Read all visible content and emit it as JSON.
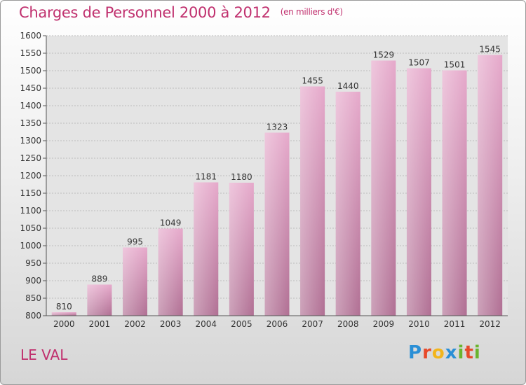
{
  "header": {
    "title": "Charges de Personnel 2000 à 2012",
    "subtitle": "(en milliers d'€)"
  },
  "footer": {
    "place": "LE VAL",
    "logo": [
      "P",
      "r",
      "o",
      "x",
      "i",
      "t",
      "i"
    ],
    "logo_colors": [
      "#2a8fd6",
      "#e7492a",
      "#f2b51c",
      "#2a8fd6",
      "#6bb42e",
      "#e7492a",
      "#6bb42e"
    ]
  },
  "chart_data": {
    "type": "bar",
    "categories": [
      "2000",
      "2001",
      "2002",
      "2003",
      "2004",
      "2005",
      "2006",
      "2007",
      "2008",
      "2009",
      "2010",
      "2011",
      "2012"
    ],
    "values": [
      810,
      889,
      995,
      1049,
      1181,
      1180,
      1323,
      1455,
      1440,
      1529,
      1507,
      1501,
      1545
    ],
    "ylim": [
      800,
      1600
    ],
    "yticks": [
      800,
      850,
      900,
      950,
      1000,
      1050,
      1100,
      1150,
      1200,
      1250,
      1300,
      1350,
      1400,
      1450,
      1500,
      1550,
      1600
    ],
    "grid": "horizontal dashed",
    "bar_color": "#d98fb8",
    "plot_bg": "#e6e6e6"
  }
}
